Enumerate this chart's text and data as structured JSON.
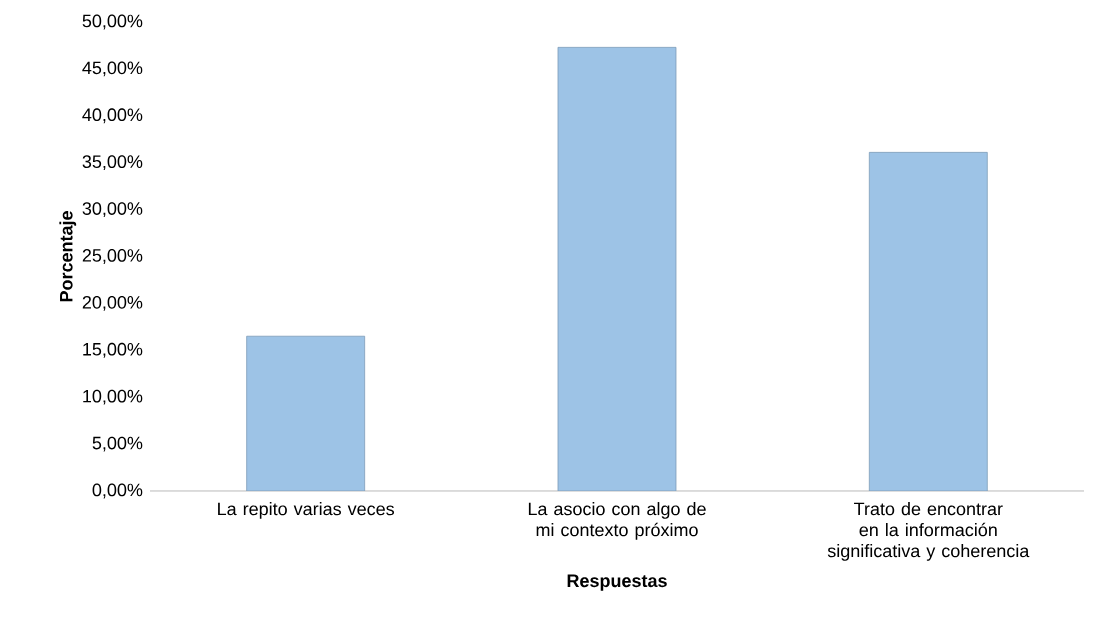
{
  "chart_data": {
    "type": "bar",
    "xlabel": "Respuestas",
    "ylabel": "Porcentaje",
    "categories": [
      "La repito varias veces",
      "La asocio con algo de mi contexto próximo",
      "Trato de encontrar en la información significativa y coherencia"
    ],
    "values": [
      16.5,
      47.3,
      36.1
    ],
    "color": "#9dc3e6",
    "ylim": [
      0,
      50
    ],
    "yticks": [
      {
        "value": 0,
        "label": "0,00%"
      },
      {
        "value": 5,
        "label": "5,00%"
      },
      {
        "value": 10,
        "label": "10,00%"
      },
      {
        "value": 15,
        "label": "15,00%"
      },
      {
        "value": 20,
        "label": "20,00%"
      },
      {
        "value": 25,
        "label": "25,00%"
      },
      {
        "value": 30,
        "label": "30,00%"
      },
      {
        "value": 35,
        "label": "35,00%"
      },
      {
        "value": 40,
        "label": "40,00%"
      },
      {
        "value": 45,
        "label": "45,00%"
      },
      {
        "value": 50,
        "label": "50,00%"
      }
    ]
  }
}
